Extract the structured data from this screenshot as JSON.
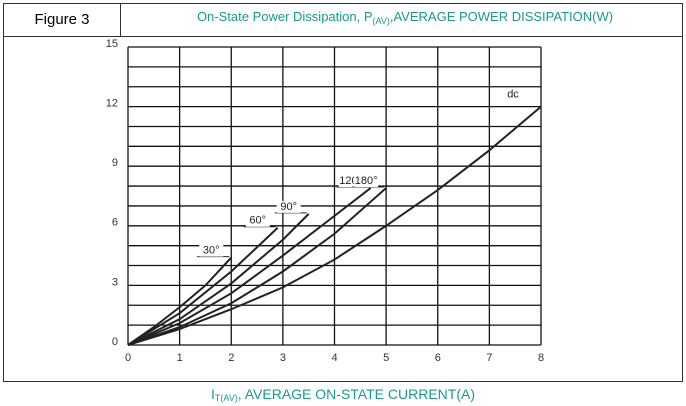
{
  "header": {
    "figure": "Figure 3"
  },
  "chart_data": {
    "type": "line",
    "title": [
      "On-State Power Dissipation, P",
      "(AV)",
      ",AVERAGE POWER DISSIPATION(W)"
    ],
    "x_label": [
      "I",
      "T(AV)",
      ", AVERAGE ON-STATE CURRENT(A)"
    ],
    "xlim": [
      0,
      8
    ],
    "xticks": [
      0,
      1,
      2,
      3,
      4,
      5,
      6,
      7,
      8
    ],
    "ylim": [
      0,
      15
    ],
    "yticks": [
      0,
      3,
      6,
      9,
      12,
      15
    ],
    "ygrid": [
      0,
      1,
      2,
      3,
      4,
      5,
      6,
      7,
      8,
      9,
      10,
      11,
      12,
      13,
      14,
      15
    ],
    "grid": true,
    "series": [
      {
        "name": "30°",
        "color": "#222222",
        "x": [
          0,
          0.5,
          1,
          1.5,
          2
        ],
        "values": [
          0,
          0.9,
          1.9,
          3.0,
          4.4
        ]
      },
      {
        "name": "60°",
        "color": "#222222",
        "x": [
          0,
          1,
          2,
          2.9
        ],
        "values": [
          0,
          1.6,
          3.7,
          5.9
        ]
      },
      {
        "name": "90°",
        "color": "#222222",
        "x": [
          0,
          1,
          2,
          3,
          3.5
        ],
        "values": [
          0,
          1.3,
          3.1,
          5.3,
          6.6
        ]
      },
      {
        "name": "120°",
        "color": "#222222",
        "x": [
          0,
          1,
          2,
          3,
          4,
          4.7
        ],
        "values": [
          0,
          1.1,
          2.6,
          4.5,
          6.5,
          7.9
        ]
      },
      {
        "name": "180°",
        "color": "#222222",
        "x": [
          0,
          1,
          2,
          3,
          4,
          5
        ],
        "values": [
          0,
          0.9,
          2.1,
          3.7,
          5.6,
          7.9
        ]
      },
      {
        "name": "dc",
        "color": "#222222",
        "x": [
          0,
          1,
          2,
          3,
          4,
          5,
          6,
          7,
          8
        ],
        "values": [
          0,
          0.8,
          1.8,
          2.9,
          4.3,
          6.0,
          7.8,
          9.8,
          12
        ]
      }
    ]
  }
}
